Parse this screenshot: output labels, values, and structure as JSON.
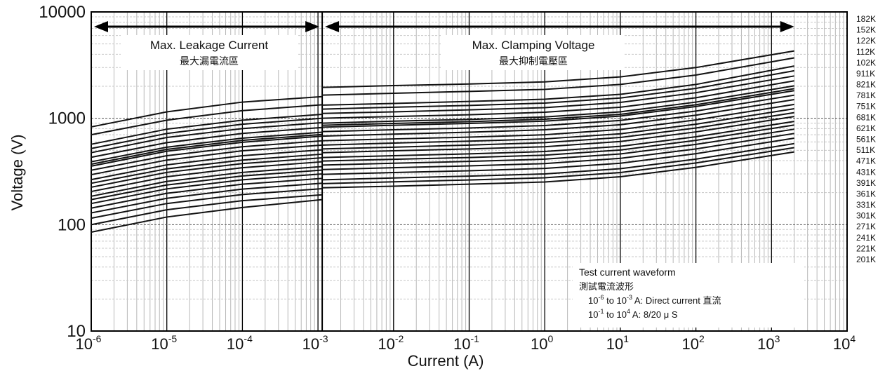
{
  "chart_data": {
    "type": "line",
    "xlabel": "Current (A)",
    "ylabel": "Voltage (V)",
    "x_scale": "log",
    "y_scale": "log",
    "xlim": [
      1e-06,
      10000
    ],
    "ylim": [
      10,
      10000
    ],
    "grid": true,
    "y_tick_labels": [
      "10",
      "100",
      "1000",
      "10000"
    ],
    "x_tick_labels": [
      {
        "base": "10",
        "exp": "-6"
      },
      {
        "base": "10",
        "exp": "-5"
      },
      {
        "base": "10",
        "exp": "-4"
      },
      {
        "base": "10",
        "exp": "-3"
      },
      {
        "base": "10",
        "exp": "-2"
      },
      {
        "base": "10",
        "exp": "-1"
      },
      {
        "base": "10",
        "exp": "0"
      },
      {
        "base": "10",
        "exp": "1"
      },
      {
        "base": "10",
        "exp": "2"
      },
      {
        "base": "10",
        "exp": "3"
      },
      {
        "base": "10",
        "exp": "4"
      }
    ],
    "region_left": {
      "label_en": "Max. Leakage Current",
      "label_zh": "最大漏電流區",
      "xrange": [
        1e-06,
        0.001
      ]
    },
    "region_right": {
      "label_en": "Max. Clamping Voltage",
      "label_zh": "最大抑制電壓區",
      "xrange": [
        0.001,
        2000
      ]
    },
    "annotation": {
      "title": "Test current waveform",
      "title_zh": "測試電流波形",
      "line1_pre": "10",
      "line1_exp1": "-6",
      "line1_mid": " to 10",
      "line1_exp2": "-3",
      "line1_post": "  A: Direct current 直流",
      "line2_pre": "10",
      "line2_exp1": "-1",
      "line2_mid": " to 10",
      "line2_exp2": "4",
      "line2_post": "  A: 8/20 μ S"
    },
    "series": [
      {
        "name": "182K",
        "points": [
          [
            1e-06,
            830
          ],
          [
            1e-05,
            1150
          ],
          [
            0.0001,
            1420
          ],
          [
            0.0009,
            1600
          ],
          [
            0.001,
            1950
          ],
          [
            0.01,
            2030
          ],
          [
            0.1,
            2100
          ],
          [
            1,
            2200
          ],
          [
            10,
            2450
          ],
          [
            100,
            3000
          ],
          [
            2000,
            4300
          ]
        ]
      },
      {
        "name": "152K",
        "points": [
          [
            1e-06,
            700
          ],
          [
            1e-05,
            960
          ],
          [
            0.0001,
            1180
          ],
          [
            0.0009,
            1340
          ],
          [
            0.001,
            1650
          ],
          [
            0.01,
            1720
          ],
          [
            0.1,
            1790
          ],
          [
            1,
            1870
          ],
          [
            10,
            2080
          ],
          [
            100,
            2550
          ],
          [
            2000,
            3700
          ]
        ]
      },
      {
        "name": "122K",
        "points": [
          [
            1e-06,
            570
          ],
          [
            1e-05,
            790
          ],
          [
            0.0001,
            960
          ],
          [
            0.0009,
            1090
          ],
          [
            0.001,
            1330
          ],
          [
            0.01,
            1380
          ],
          [
            0.1,
            1440
          ],
          [
            1,
            1510
          ],
          [
            10,
            1680
          ],
          [
            100,
            2080
          ],
          [
            2000,
            3100
          ]
        ]
      },
      {
        "name": "112K",
        "points": [
          [
            1e-06,
            520
          ],
          [
            1e-05,
            720
          ],
          [
            0.0001,
            880
          ],
          [
            0.0009,
            1000
          ],
          [
            0.001,
            1220
          ],
          [
            0.01,
            1270
          ],
          [
            0.1,
            1320
          ],
          [
            1,
            1390
          ],
          [
            10,
            1550
          ],
          [
            100,
            1910
          ],
          [
            2000,
            2800
          ]
        ]
      },
      {
        "name": "102K",
        "points": [
          [
            1e-06,
            475
          ],
          [
            1e-05,
            660
          ],
          [
            0.0001,
            800
          ],
          [
            0.0009,
            910
          ],
          [
            0.001,
            1110
          ],
          [
            0.01,
            1150
          ],
          [
            0.1,
            1200
          ],
          [
            1,
            1260
          ],
          [
            10,
            1410
          ],
          [
            100,
            1740
          ],
          [
            2000,
            2500
          ]
        ]
      },
      {
        "name": "911K",
        "points": [
          [
            1e-06,
            430
          ],
          [
            1e-05,
            590
          ],
          [
            0.0001,
            720
          ],
          [
            0.0009,
            820
          ],
          [
            0.001,
            1000
          ],
          [
            0.01,
            1040
          ],
          [
            0.1,
            1080
          ],
          [
            1,
            1140
          ],
          [
            10,
            1270
          ],
          [
            100,
            1560
          ],
          [
            2000,
            2250
          ]
        ]
      },
      {
        "name": "821K",
        "points": [
          [
            1e-06,
            390
          ],
          [
            1e-05,
            535
          ],
          [
            0.0001,
            650
          ],
          [
            0.0009,
            740
          ],
          [
            0.001,
            900
          ],
          [
            0.01,
            940
          ],
          [
            0.1,
            975
          ],
          [
            1,
            1030
          ],
          [
            10,
            1150
          ],
          [
            100,
            1420
          ],
          [
            2000,
            2020
          ]
        ]
      },
      {
        "name": "781K",
        "points": [
          [
            1e-06,
            370
          ],
          [
            1e-05,
            510
          ],
          [
            0.0001,
            620
          ],
          [
            0.0009,
            705
          ],
          [
            0.001,
            860
          ],
          [
            0.01,
            895
          ],
          [
            0.1,
            930
          ],
          [
            1,
            980
          ],
          [
            10,
            1090
          ],
          [
            100,
            1340
          ],
          [
            2000,
            1900
          ]
        ]
      },
      {
        "name": "751K",
        "points": [
          [
            1e-06,
            355
          ],
          [
            1e-05,
            490
          ],
          [
            0.0001,
            595
          ],
          [
            0.0009,
            680
          ],
          [
            0.001,
            825
          ],
          [
            0.01,
            860
          ],
          [
            0.1,
            895
          ],
          [
            1,
            940
          ],
          [
            10,
            1050
          ],
          [
            100,
            1290
          ],
          [
            2000,
            1820
          ]
        ]
      },
      {
        "name": "681K",
        "points": [
          [
            1e-06,
            325
          ],
          [
            1e-05,
            445
          ],
          [
            0.0001,
            540
          ],
          [
            0.0009,
            615
          ],
          [
            0.001,
            750
          ],
          [
            0.01,
            780
          ],
          [
            0.1,
            810
          ],
          [
            1,
            855
          ],
          [
            10,
            955
          ],
          [
            100,
            1170
          ],
          [
            2000,
            1650
          ]
        ]
      },
      {
        "name": "621K",
        "points": [
          [
            1e-06,
            295
          ],
          [
            1e-05,
            405
          ],
          [
            0.0001,
            495
          ],
          [
            0.0009,
            560
          ],
          [
            0.001,
            680
          ],
          [
            0.01,
            710
          ],
          [
            0.1,
            740
          ],
          [
            1,
            780
          ],
          [
            10,
            870
          ],
          [
            100,
            1070
          ],
          [
            2000,
            1500
          ]
        ]
      },
      {
        "name": "561K",
        "points": [
          [
            1e-06,
            265
          ],
          [
            1e-05,
            365
          ],
          [
            0.0001,
            445
          ],
          [
            0.0009,
            505
          ],
          [
            0.001,
            615
          ],
          [
            0.01,
            640
          ],
          [
            0.1,
            665
          ],
          [
            1,
            700
          ],
          [
            10,
            785
          ],
          [
            100,
            965
          ],
          [
            2000,
            1350
          ]
        ]
      },
      {
        "name": "511K",
        "points": [
          [
            1e-06,
            245
          ],
          [
            1e-05,
            335
          ],
          [
            0.0001,
            405
          ],
          [
            0.0009,
            460
          ],
          [
            0.001,
            560
          ],
          [
            0.01,
            585
          ],
          [
            0.1,
            610
          ],
          [
            1,
            640
          ],
          [
            10,
            715
          ],
          [
            100,
            880
          ],
          [
            2000,
            1230
          ]
        ]
      },
      {
        "name": "471K",
        "points": [
          [
            1e-06,
            225
          ],
          [
            1e-05,
            310
          ],
          [
            0.0001,
            375
          ],
          [
            0.0009,
            425
          ],
          [
            0.001,
            515
          ],
          [
            0.01,
            535
          ],
          [
            0.1,
            560
          ],
          [
            1,
            590
          ],
          [
            10,
            660
          ],
          [
            100,
            810
          ],
          [
            2000,
            1130
          ]
        ]
      },
      {
        "name": "431K",
        "points": [
          [
            1e-06,
            205
          ],
          [
            1e-05,
            282
          ],
          [
            0.0001,
            343
          ],
          [
            0.0009,
            390
          ],
          [
            0.001,
            475
          ],
          [
            0.01,
            495
          ],
          [
            0.1,
            515
          ],
          [
            1,
            540
          ],
          [
            10,
            605
          ],
          [
            100,
            745
          ],
          [
            2000,
            1040
          ]
        ]
      },
      {
        "name": "391K",
        "points": [
          [
            1e-06,
            185
          ],
          [
            1e-05,
            255
          ],
          [
            0.0001,
            310
          ],
          [
            0.0009,
            352
          ],
          [
            0.001,
            428
          ],
          [
            0.01,
            445
          ],
          [
            0.1,
            463
          ],
          [
            1,
            487
          ],
          [
            10,
            545
          ],
          [
            100,
            670
          ],
          [
            2000,
            935
          ]
        ]
      },
      {
        "name": "361K",
        "points": [
          [
            1e-06,
            172
          ],
          [
            1e-05,
            236
          ],
          [
            0.0001,
            287
          ],
          [
            0.0009,
            326
          ],
          [
            0.001,
            396
          ],
          [
            0.01,
            412
          ],
          [
            0.1,
            428
          ],
          [
            1,
            450
          ],
          [
            10,
            503
          ],
          [
            100,
            620
          ],
          [
            2000,
            865
          ]
        ]
      },
      {
        "name": "331K",
        "points": [
          [
            1e-06,
            158
          ],
          [
            1e-05,
            217
          ],
          [
            0.0001,
            264
          ],
          [
            0.0009,
            300
          ],
          [
            0.001,
            363
          ],
          [
            0.01,
            378
          ],
          [
            0.1,
            393
          ],
          [
            1,
            413
          ],
          [
            10,
            462
          ],
          [
            100,
            568
          ],
          [
            2000,
            790
          ]
        ]
      },
      {
        "name": "301K",
        "points": [
          [
            1e-06,
            143
          ],
          [
            1e-05,
            197
          ],
          [
            0.0001,
            240
          ],
          [
            0.0009,
            272
          ],
          [
            0.001,
            330
          ],
          [
            0.01,
            343
          ],
          [
            0.1,
            357
          ],
          [
            1,
            375
          ],
          [
            10,
            420
          ],
          [
            100,
            515
          ],
          [
            2000,
            720
          ]
        ]
      },
      {
        "name": "271K",
        "points": [
          [
            1e-06,
            129
          ],
          [
            1e-05,
            177
          ],
          [
            0.0001,
            216
          ],
          [
            0.0009,
            245
          ],
          [
            0.001,
            297
          ],
          [
            0.01,
            309
          ],
          [
            0.1,
            321
          ],
          [
            1,
            338
          ],
          [
            10,
            378
          ],
          [
            100,
            465
          ],
          [
            2000,
            650
          ]
        ]
      },
      {
        "name": "241K",
        "points": [
          [
            1e-06,
            115
          ],
          [
            1e-05,
            158
          ],
          [
            0.0001,
            192
          ],
          [
            0.0009,
            218
          ],
          [
            0.001,
            264
          ],
          [
            0.01,
            275
          ],
          [
            0.1,
            286
          ],
          [
            1,
            300
          ],
          [
            10,
            336
          ],
          [
            100,
            413
          ],
          [
            2000,
            578
          ]
        ]
      },
      {
        "name": "221K",
        "points": [
          [
            1e-06,
            100
          ],
          [
            1e-05,
            138
          ],
          [
            0.0001,
            168
          ],
          [
            0.0009,
            191
          ],
          [
            0.001,
            243
          ],
          [
            0.01,
            253
          ],
          [
            0.1,
            263
          ],
          [
            1,
            276
          ],
          [
            10,
            309
          ],
          [
            100,
            380
          ],
          [
            2000,
            530
          ]
        ]
      },
      {
        "name": "201K",
        "points": [
          [
            1e-06,
            85
          ],
          [
            1e-05,
            118
          ],
          [
            0.0001,
            145
          ],
          [
            0.0009,
            172
          ],
          [
            0.001,
            222
          ],
          [
            0.01,
            230
          ],
          [
            0.1,
            240
          ],
          [
            1,
            252
          ],
          [
            10,
            282
          ],
          [
            100,
            346
          ],
          [
            2000,
            483
          ]
        ]
      }
    ]
  },
  "label_positions_note": ""
}
